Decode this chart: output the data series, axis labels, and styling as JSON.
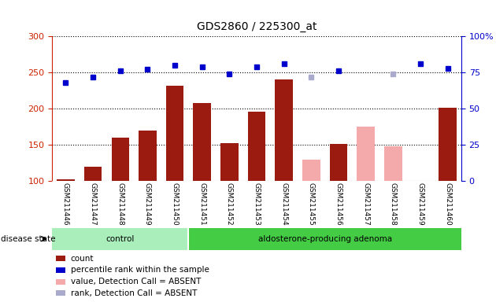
{
  "title": "GDS2860 / 225300_at",
  "samples": [
    "GSM211446",
    "GSM211447",
    "GSM211448",
    "GSM211449",
    "GSM211450",
    "GSM211451",
    "GSM211452",
    "GSM211453",
    "GSM211454",
    "GSM211455",
    "GSM211456",
    "GSM211457",
    "GSM211458",
    "GSM211459",
    "GSM211460"
  ],
  "count_values": [
    103,
    120,
    160,
    170,
    232,
    208,
    152,
    196,
    240,
    null,
    151,
    null,
    null,
    null,
    201
  ],
  "count_absent_values": [
    null,
    null,
    null,
    null,
    null,
    null,
    null,
    null,
    null,
    130,
    null,
    175,
    148,
    null,
    null
  ],
  "rank_values": [
    236,
    244,
    252,
    254,
    260,
    258,
    248,
    258,
    262,
    null,
    252,
    null,
    null,
    262,
    256
  ],
  "rank_absent_values": [
    null,
    null,
    null,
    null,
    null,
    null,
    null,
    null,
    null,
    244,
    null,
    null,
    248,
    null,
    null
  ],
  "control_count": 5,
  "total_count": 15,
  "ylim": [
    100,
    300
  ],
  "yticks_left": [
    100,
    150,
    200,
    250,
    300
  ],
  "yticks_right_labels": [
    "0",
    "25",
    "50",
    "75",
    "100%"
  ],
  "bar_color": "#9B1B10",
  "bar_absent_color": "#F4AAAA",
  "rank_color": "#0000CC",
  "rank_absent_color": "#AAAACC",
  "control_bg": "#AAEEBB",
  "adenoma_bg": "#44CC44",
  "xlabel_area_bg": "#C8C8C8",
  "left_axis_color": "#CC2200",
  "right_axis_color": "#0000CC",
  "legend_labels": [
    "count",
    "percentile rank within the sample",
    "value, Detection Call = ABSENT",
    "rank, Detection Call = ABSENT"
  ],
  "legend_colors": [
    "#9B1B10",
    "#0000CC",
    "#F4AAAA",
    "#AAAACC"
  ],
  "disease_label": "disease state",
  "control_label": "control",
  "adenoma_label": "aldosterone-producing adenoma"
}
